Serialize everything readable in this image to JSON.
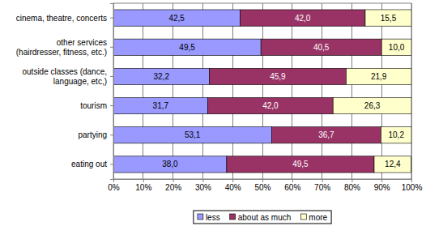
{
  "chart_data": {
    "type": "bar",
    "orientation": "horizontal",
    "stacked": true,
    "data_labels": true,
    "grid": true,
    "legend": "bottom",
    "categories": [
      "cinema, theatre, concerts",
      "other services\n(hairdresser, fitness, etc.)",
      "outside classes (dance,\nlanguage, etc,)",
      "tourism",
      "partying",
      "eating out"
    ],
    "series": [
      {
        "name": "less",
        "color": "#9999ff",
        "values": [
          42.5,
          49.5,
          32.2,
          31.7,
          53.1,
          38.0
        ],
        "value_labels": [
          "42,5",
          "49,5",
          "32,2",
          "31,7",
          "53,1",
          "38,0"
        ]
      },
      {
        "name": "about as much",
        "color": "#993366",
        "values": [
          42.0,
          40.5,
          45.9,
          42.0,
          36.7,
          49.5
        ],
        "value_labels": [
          "42,0",
          "40,5",
          "45,9",
          "42,0",
          "36,7",
          "49,5"
        ]
      },
      {
        "name": "more",
        "color": "#ffffcc",
        "values": [
          15.5,
          10.0,
          21.9,
          26.3,
          10.2,
          12.4
        ],
        "value_labels": [
          "15,5",
          "10,0",
          "21,9",
          "26,3",
          "10,2",
          "12,4"
        ]
      }
    ],
    "xlim": [
      0,
      100
    ],
    "xticks": [
      {
        "value": 0,
        "label": "0%"
      },
      {
        "value": 10,
        "label": "10%"
      },
      {
        "value": 20,
        "label": "20%"
      },
      {
        "value": 30,
        "label": "30%"
      },
      {
        "value": 40,
        "label": "40%"
      },
      {
        "value": 50,
        "label": "50%"
      },
      {
        "value": 60,
        "label": "60%"
      },
      {
        "value": 70,
        "label": "70%"
      },
      {
        "value": 80,
        "label": "80%"
      },
      {
        "value": 90,
        "label": "90%"
      },
      {
        "value": 100,
        "label": "100%"
      }
    ]
  }
}
